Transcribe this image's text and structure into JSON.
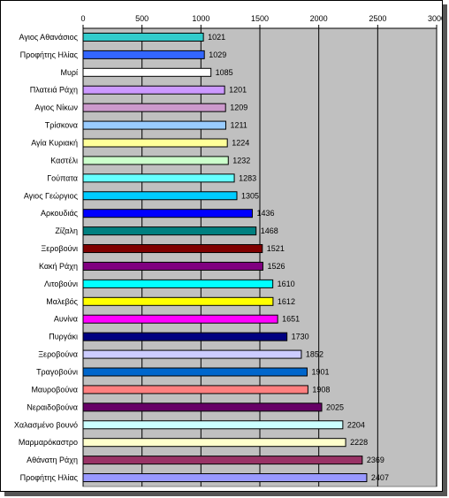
{
  "chart_data": {
    "type": "bar",
    "orientation": "horizontal",
    "title": "",
    "xlabel": "",
    "ylabel": "",
    "xlim": [
      0,
      3000
    ],
    "x_ticks": [
      "0",
      "500",
      "1000",
      "1500",
      "2000",
      "2500",
      "3000"
    ],
    "x_axis_position": "top",
    "grid": true,
    "legend": "none",
    "plot_background": "#c0c0c0",
    "categories": [
      "Αγιος Αθανάσιος",
      "Προφήτης Ηλίας",
      "Μυρί",
      "Πλατειά Ράχη",
      "Αγιος Νίκων",
      "Τρίσκονα",
      "Αγία Κυριακή",
      "Καστέλι",
      "Γούπατα",
      "Αγιος Γεώργιος",
      "Αρκουδιάς",
      "Ζίζαλη",
      "Ξεροβούνι",
      "Κακή Ράχη",
      "Λιτοβούνι",
      "Μαλεβός",
      "Αυνίνα",
      "Πυργάκι",
      "Ξεροβούνα",
      "Τραγοβούνι",
      "Μαυροβούνα",
      "Νεραιδοβούνα",
      "Χαλασμένο βουνό",
      "Μαρμαρόκαστρο",
      "Αθάνατη Ράχη",
      "Προφήτης Ηλίας"
    ],
    "values": [
      1021,
      1029,
      1085,
      1201,
      1209,
      1211,
      1224,
      1232,
      1283,
      1305,
      1436,
      1468,
      1521,
      1526,
      1610,
      1612,
      1651,
      1730,
      1852,
      1901,
      1908,
      2025,
      2204,
      2228,
      2369,
      2407
    ],
    "value_labels": [
      "1021",
      "1029",
      "1085",
      "1201",
      "1209",
      "1211",
      "1224",
      "1232",
      "1283",
      "1305",
      "1436",
      "1468",
      "1521",
      "1526",
      "1610",
      "1612",
      "1651",
      "1730",
      "1852",
      "1901",
      "1908",
      "2025",
      "2204",
      "2228",
      "2369",
      "2407"
    ],
    "colors": [
      "#33cccc",
      "#3366ff",
      "#ffffff",
      "#cc99ff",
      "#cc99cc",
      "#99ccff",
      "#ffff99",
      "#ccffcc",
      "#66ffff",
      "#00ccff",
      "#0000ff",
      "#008080",
      "#800000",
      "#800080",
      "#00ffff",
      "#ffff00",
      "#ff00ff",
      "#000080",
      "#ccccff",
      "#0066cc",
      "#ff8080",
      "#660066",
      "#ccffff",
      "#ffffcc",
      "#993366",
      "#9999ff"
    ]
  }
}
